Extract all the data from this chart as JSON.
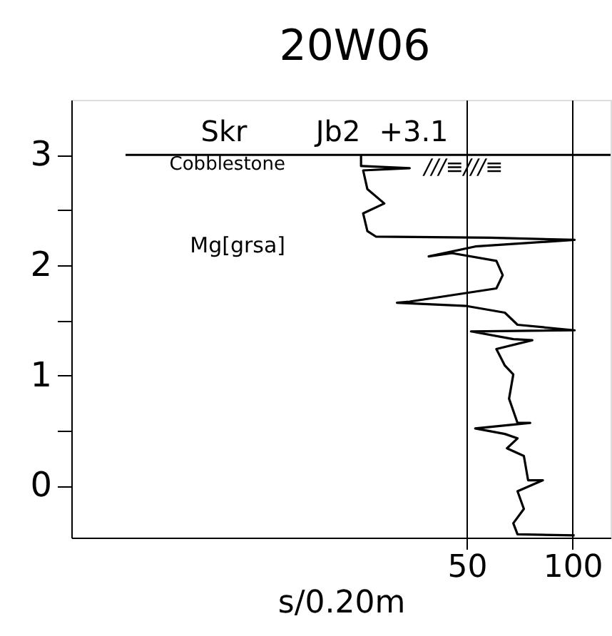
{
  "chart_data": {
    "type": "line",
    "title": "20W06",
    "xlabel": "s/0.20m",
    "annotations": [
      "Skr",
      "Jb2",
      "+3.1",
      "Cobblestone",
      "Mg[grsa]",
      "///≡///≡"
    ],
    "series": [
      {
        "color": "#000000",
        "x": [
          0,
          0,
          23,
          1,
          3,
          11,
          1,
          3,
          7,
          61,
          101,
          54,
          32,
          43,
          64,
          67,
          64,
          23,
          17,
          50,
          68,
          74,
          101,
          52,
          72,
          81,
          64,
          68,
          72,
          70,
          74,
          80,
          54,
          68,
          74,
          69,
          77,
          79,
          86,
          74,
          77,
          72,
          74,
          101
        ],
        "values": [
          3.0,
          2.9,
          2.88,
          2.86,
          2.69,
          2.56,
          2.47,
          2.31,
          2.26,
          2.25,
          2.23,
          2.17,
          2.08,
          2.11,
          2.04,
          1.91,
          1.79,
          1.67,
          1.66,
          1.63,
          1.57,
          1.46,
          1.41,
          1.4,
          1.33,
          1.32,
          1.24,
          1.09,
          1.01,
          0.79,
          0.57,
          0.57,
          0.52,
          0.47,
          0.43,
          0.34,
          0.27,
          0.05,
          0.05,
          -0.05,
          -0.21,
          -0.34,
          -0.44,
          -0.45
        ]
      }
    ],
    "xlim": [
      -137,
      118
    ],
    "xticks": [
      50,
      100
    ],
    "ylim": [
      -0.47,
      3.5
    ],
    "yticks": [
      0,
      {
        "value": 0.5,
        "label": null
      },
      1,
      {
        "value": 1.5,
        "label": null
      },
      2,
      {
        "value": 2.5,
        "label": null
      },
      3
    ],
    "ref_lines": [
      {
        "axis": "y",
        "value": 3,
        "label": null
      }
    ],
    "grid": "x",
    "line_style": "solid",
    "marker": "none",
    "legend": false
  }
}
